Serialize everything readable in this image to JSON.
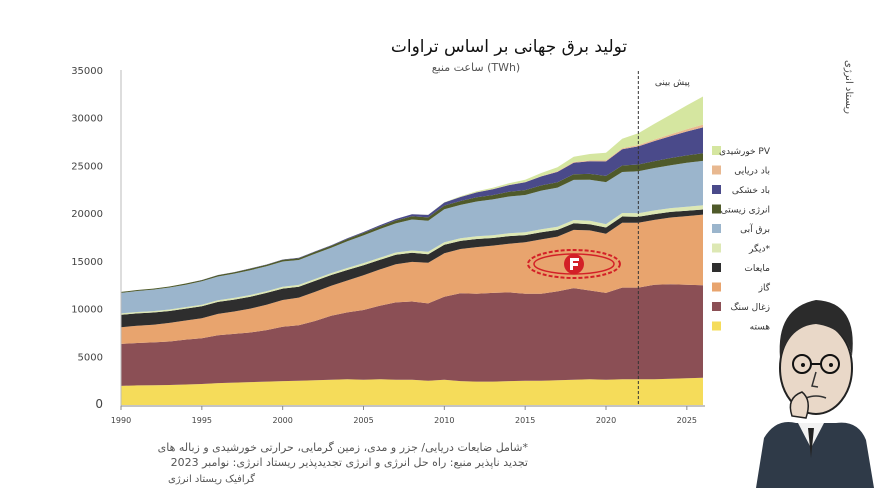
{
  "page": {
    "side_label": "ریستاد انرژی",
    "footnote": "*شامل ضایعات دریایی/ جزر و مدی، زمین گرمایی، حرارتی خورشیدی و زباله های",
    "source": "تجدید ناپذیر منبع: راه حل انرژی و انرژی تجدیدپذیر ریستاد انرژی: نوامبر 2023",
    "credit": "گرافیک ریستاد انرژی"
  },
  "chart_data": {
    "type": "area",
    "title": "تولید برق جهانی بر اساس تراوات",
    "subtitle": "ساعت منبع (TWh)",
    "forecast_label": "پیش بینی",
    "forecast_start": 2022,
    "x": [
      1990,
      1991,
      1992,
      1993,
      1994,
      1995,
      1996,
      1997,
      1998,
      1999,
      2000,
      2001,
      2002,
      2003,
      2004,
      2005,
      2006,
      2007,
      2008,
      2009,
      2010,
      2011,
      2012,
      2013,
      2014,
      2015,
      2016,
      2017,
      2018,
      2019,
      2020,
      2021,
      2022,
      2023,
      2024,
      2025,
      2026
    ],
    "xticks": [
      1990,
      1995,
      2000,
      2005,
      2010,
      2015,
      2020,
      2025
    ],
    "ylim": [
      0,
      35000
    ],
    "yticks": [
      0,
      5000,
      10000,
      15000,
      20000,
      25000,
      30000,
      35000
    ],
    "grid": false,
    "legend_position": "right",
    "colors": {
      "nuclear": "#f5dc5a",
      "coal": "#8b4f55",
      "gas": "#e8a46e",
      "liquids": "#2e2e2e",
      "other": "#dde8b4",
      "hydro": "#9bb5cc",
      "bioenergy": "#4f5a2a",
      "onshore_wind": "#4a4a8a",
      "offshore_wind": "#e8b890",
      "solar": "#d5e6a0"
    },
    "series": [
      {
        "name": "هسته",
        "key": "nuclear",
        "values": [
          2000,
          2050,
          2080,
          2100,
          2150,
          2200,
          2300,
          2350,
          2400,
          2450,
          2500,
          2550,
          2600,
          2650,
          2700,
          2650,
          2700,
          2650,
          2650,
          2550,
          2650,
          2500,
          2450,
          2450,
          2500,
          2550,
          2550,
          2600,
          2650,
          2700,
          2650,
          2700,
          2700,
          2700,
          2750,
          2800,
          2850
        ]
      },
      {
        "name": "زغال سنگ",
        "key": "coal",
        "values": [
          4400,
          4450,
          4480,
          4550,
          4700,
          4800,
          5000,
          5100,
          5200,
          5400,
          5700,
          5800,
          6200,
          6700,
          7000,
          7300,
          7700,
          8100,
          8200,
          8100,
          8700,
          9200,
          9200,
          9300,
          9300,
          9100,
          9100,
          9300,
          9600,
          9300,
          9100,
          9600,
          9600,
          9900,
          9900,
          9800,
          9700
        ]
      },
      {
        "name": "گاز",
        "key": "gas",
        "values": [
          1750,
          1800,
          1850,
          1950,
          2000,
          2100,
          2250,
          2350,
          2500,
          2650,
          2800,
          2900,
          3050,
          3150,
          3350,
          3650,
          3800,
          4000,
          4150,
          4250,
          4550,
          4650,
          4900,
          4950,
          5100,
          5400,
          5700,
          5750,
          6100,
          6300,
          6200,
          6800,
          6800,
          6800,
          7000,
          7200,
          7400
        ]
      },
      {
        "name": "مایعات",
        "key": "liquids",
        "values": [
          1300,
          1300,
          1280,
          1250,
          1250,
          1250,
          1250,
          1250,
          1250,
          1250,
          1200,
          1150,
          1150,
          1120,
          1100,
          1050,
          1000,
          1000,
          950,
          900,
          900,
          850,
          850,
          800,
          800,
          750,
          750,
          700,
          700,
          650,
          650,
          650,
          620,
          600,
          580,
          560,
          540
        ]
      },
      {
        "name": "دیگر*",
        "key": "other",
        "values": [
          150,
          150,
          150,
          160,
          160,
          160,
          170,
          170,
          180,
          180,
          190,
          190,
          200,
          200,
          210,
          220,
          230,
          230,
          240,
          250,
          260,
          270,
          280,
          290,
          300,
          310,
          320,
          330,
          340,
          350,
          360,
          370,
          380,
          390,
          400,
          420,
          440
        ]
      },
      {
        "name": "برق آبی",
        "key": "hydro",
        "values": [
          2150,
          2200,
          2250,
          2300,
          2350,
          2450,
          2500,
          2550,
          2600,
          2600,
          2650,
          2600,
          2650,
          2650,
          2800,
          2900,
          3000,
          3050,
          3250,
          3250,
          3450,
          3500,
          3650,
          3750,
          3850,
          3900,
          4050,
          4100,
          4200,
          4300,
          4400,
          4300,
          4400,
          4450,
          4500,
          4600,
          4650
        ]
      },
      {
        "name": "انرژی زیستی",
        "key": "bioenergy",
        "values": [
          100,
          100,
          110,
          110,
          120,
          130,
          140,
          150,
          160,
          170,
          180,
          190,
          200,
          220,
          240,
          260,
          280,
          300,
          330,
          360,
          380,
          410,
          440,
          460,
          490,
          510,
          540,
          560,
          590,
          620,
          650,
          680,
          700,
          720,
          750,
          780,
          810
        ]
      },
      {
        "name": "باد خشکی",
        "key": "onshore_wind",
        "values": [
          0,
          0,
          0,
          0,
          0,
          10,
          10,
          10,
          20,
          20,
          30,
          40,
          50,
          60,
          80,
          100,
          130,
          160,
          210,
          260,
          330,
          420,
          510,
          610,
          700,
          820,
          940,
          1090,
          1210,
          1320,
          1520,
          1710,
          1900,
          2100,
          2300,
          2500,
          2700
        ]
      },
      {
        "name": "باد دریایی",
        "key": "offshore_wind",
        "values": [
          0,
          0,
          0,
          0,
          0,
          0,
          0,
          0,
          0,
          0,
          0,
          0,
          0,
          0,
          0,
          0,
          0,
          0,
          0,
          0,
          0,
          10,
          10,
          20,
          20,
          30,
          40,
          60,
          70,
          80,
          90,
          100,
          130,
          160,
          200,
          240,
          290
        ]
      },
      {
        "name": "خورشیدی PV",
        "key": "solar",
        "values": [
          0,
          0,
          0,
          0,
          0,
          0,
          0,
          0,
          0,
          0,
          0,
          0,
          0,
          0,
          0,
          0,
          0,
          0,
          10,
          20,
          30,
          60,
          100,
          130,
          180,
          240,
          320,
          430,
          550,
          680,
          820,
          1000,
          1250,
          1650,
          2050,
          2500,
          2950
        ]
      }
    ],
    "legend_order": [
      "solar",
      "offshore_wind",
      "onshore_wind",
      "bioenergy",
      "hydro",
      "other",
      "liquids",
      "gas",
      "coal",
      "nuclear"
    ]
  }
}
